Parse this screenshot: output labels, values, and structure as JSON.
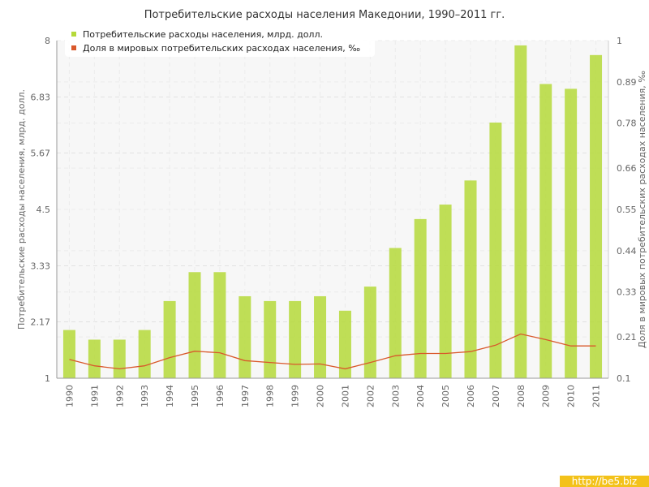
{
  "chart_data": {
    "type": "bar",
    "title": "Потребительские расходы населения Македонии, 1990–2011 гг.",
    "ylabel_left": "Потребительские расходы населения, млрд. долл.",
    "ylabel_right": "Доля в мировых потребительских расходах населения, ‰",
    "categories": [
      "1990",
      "1991",
      "1992",
      "1993",
      "1994",
      "1995",
      "1996",
      "1997",
      "1998",
      "1999",
      "2000",
      "2001",
      "2002",
      "2003",
      "2004",
      "2005",
      "2006",
      "2007",
      "2008",
      "2009",
      "2010",
      "2011"
    ],
    "series": [
      {
        "name": "Потребительские расходы населения, млрд. долл.",
        "type": "bar",
        "axis": "left",
        "color": "#b5d93a",
        "values": [
          2.0,
          1.8,
          1.8,
          2.0,
          2.6,
          3.2,
          3.2,
          2.7,
          2.6,
          2.6,
          2.7,
          2.4,
          2.9,
          3.7,
          4.3,
          4.6,
          5.1,
          6.3,
          7.9,
          7.1,
          7.0,
          7.7
        ]
      },
      {
        "name": "Доля в мировых потребительских расходах населения, ‰",
        "type": "line",
        "axis": "right",
        "color": "#d9582b",
        "values": [
          0.15,
          0.133,
          0.125,
          0.133,
          0.155,
          0.172,
          0.168,
          0.147,
          0.142,
          0.137,
          0.138,
          0.125,
          0.142,
          0.16,
          0.166,
          0.166,
          0.171,
          0.188,
          0.218,
          0.203,
          0.186,
          0.186
        ]
      }
    ],
    "ylim_left": [
      1,
      8
    ],
    "ylim_right": [
      0.1,
      1
    ],
    "yticks_left": [
      "1",
      "2.17",
      "3.33",
      "4.5",
      "5.67",
      "6.83",
      "8"
    ],
    "yticks_right": [
      "0.1",
      "0.21",
      "0.33",
      "0.44",
      "0.55",
      "0.66",
      "0.78",
      "0.89",
      "1"
    ],
    "grid": true,
    "legend_position": "top-left"
  },
  "watermark": "http://be5.biz"
}
